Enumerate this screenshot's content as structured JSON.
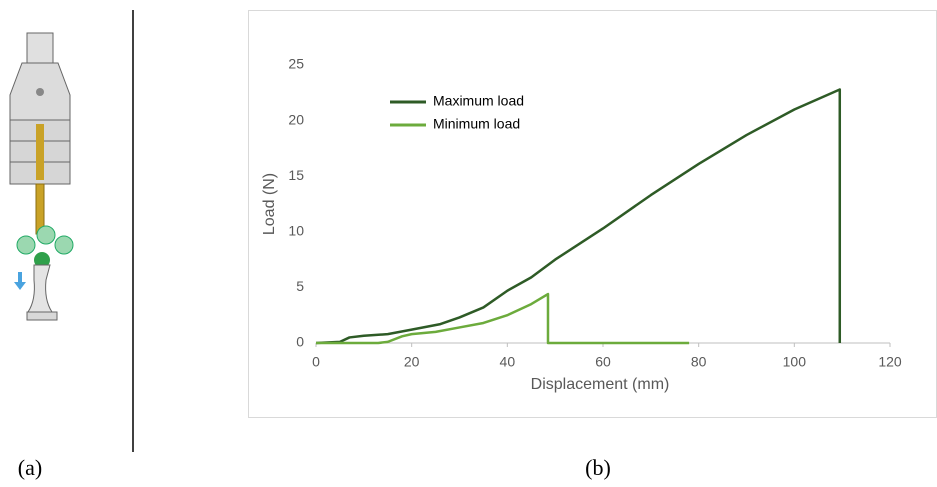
{
  "panel_labels": [
    "(a)",
    "(b)"
  ],
  "chart_data": {
    "type": "line",
    "xlabel": "Displacement (mm)",
    "ylabel": "Load (N)",
    "xlim": [
      0,
      120
    ],
    "xticks": [
      0,
      20,
      40,
      60,
      80,
      100,
      120
    ],
    "ylim": [
      0,
      25
    ],
    "yticks": [
      0,
      5,
      10,
      15,
      20,
      25
    ],
    "grid": false,
    "legend": "upper left",
    "series": [
      {
        "name": "Maximum load",
        "color": "#2e5b26",
        "x": [
          0,
          5,
          7,
          10,
          15,
          20,
          26,
          30,
          35,
          40,
          45,
          50,
          60,
          70,
          80,
          90,
          100,
          109.5,
          109.5
        ],
        "values": [
          0,
          0.1,
          0.5,
          0.65,
          0.8,
          1.2,
          1.7,
          2.3,
          3.2,
          4.7,
          5.9,
          7.5,
          10.3,
          13.3,
          16.1,
          18.7,
          21.0,
          22.8,
          0
        ]
      },
      {
        "name": "Minimum load",
        "color": "#6cab3c",
        "x": [
          0,
          13,
          15,
          18,
          20,
          25,
          30,
          35,
          40,
          45,
          48.5,
          48.5,
          78
        ],
        "values": [
          0,
          0,
          0.1,
          0.6,
          0.8,
          1.0,
          1.4,
          1.8,
          2.5,
          3.5,
          4.4,
          0,
          0
        ]
      }
    ]
  }
}
